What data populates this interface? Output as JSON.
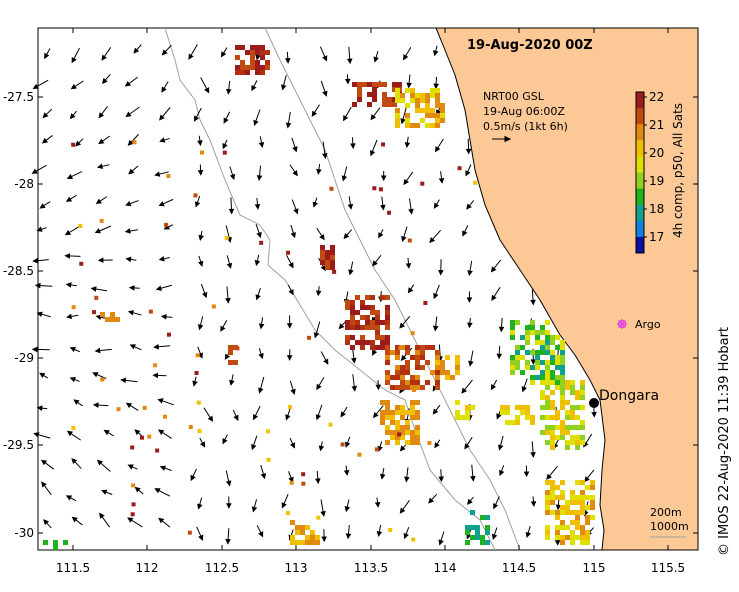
{
  "map": {
    "title": "19-Aug-2020 00Z",
    "current_legend": {
      "line1": "NRT00 GSL",
      "line2": "19-Aug 06:00Z",
      "line3": "0.5m/s (1kt 6h)"
    },
    "colorbar": {
      "label": "4h comp, p50, All Sats",
      "ticks": [
        "22",
        "21",
        "20",
        "19",
        "18",
        "17"
      ],
      "colors": [
        "#9c1c1c",
        "#c04a10",
        "#e08a10",
        "#f0c000",
        "#e0e000",
        "#90d020",
        "#20b020",
        "#10a090",
        "#1080e0",
        "#1010a0"
      ]
    },
    "lat_ticks": [
      "-27.5",
      "-28",
      "-28.5",
      "-29",
      "-29.5",
      "-30"
    ],
    "lon_ticks": [
      "111.5",
      "112",
      "112.5",
      "113",
      "113.5",
      "114",
      "114.5",
      "115",
      "115.5"
    ],
    "places": {
      "dongara": "Dongara",
      "argo": "Argo"
    },
    "scale": {
      "contour1": "200m",
      "contour2": "1000m"
    },
    "credit": "© IMOS 22-Aug-2020 11:39 Hobart",
    "colors": {
      "land": "#fcc896",
      "ocean": "#ffffff",
      "argo_marker": "#e040e0",
      "contour": "#a0a0a0"
    }
  }
}
